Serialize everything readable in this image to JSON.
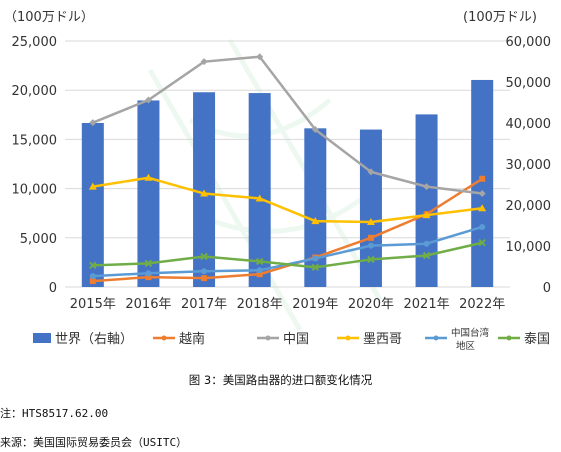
{
  "chart_data": {
    "type": "bar+line",
    "left_unit": "（100万ドル）",
    "right_unit": "(100万ドル)",
    "left_ticks": [
      "0",
      "5,000",
      "10,000",
      "15,000",
      "20,000",
      "25,000"
    ],
    "right_ticks": [
      "0",
      "10,000",
      "20,000",
      "30,000",
      "40,000",
      "50,000",
      "60,000"
    ],
    "left_ylim": [
      0,
      25000
    ],
    "right_ylim": [
      0,
      60000
    ],
    "categories": [
      "2015年",
      "2016年",
      "2017年",
      "2018年",
      "2019年",
      "2020年",
      "2021年",
      "2022年"
    ],
    "bar_series": {
      "name": "世界（右軸）",
      "color": "#4472C4",
      "axis": "right",
      "values": [
        40000,
        45500,
        47500,
        47300,
        38700,
        38400,
        42100,
        50500
      ]
    },
    "series": [
      {
        "name": "越南",
        "color": "#ED7D31",
        "axis": "left",
        "values": [
          600,
          1000,
          900,
          1300,
          3000,
          5000,
          7400,
          11000
        ]
      },
      {
        "name": "中国",
        "color": "#A5A5A5",
        "axis": "left",
        "values": [
          16700,
          19000,
          22900,
          23400,
          16000,
          11700,
          10200,
          9500
        ]
      },
      {
        "name": "墨西哥",
        "color": "#FFC000",
        "axis": "left",
        "values": [
          10200,
          11100,
          9500,
          9000,
          6700,
          6600,
          7300,
          8000
        ]
      },
      {
        "name": "中国台湾地区",
        "color": "#5B9BD5",
        "axis": "left",
        "values": [
          1100,
          1400,
          1600,
          1700,
          2900,
          4200,
          4400,
          6100
        ]
      },
      {
        "name": "泰国",
        "color": "#70AD47",
        "axis": "left",
        "values": [
          2200,
          2400,
          3100,
          2600,
          2000,
          2800,
          3200,
          4500
        ]
      }
    ],
    "grid": true,
    "legend_position": "bottom"
  },
  "caption": "图 3：美国路由器的进口额变化情况",
  "note": "注：HTS8517.62.00",
  "source": "来源：美国国际贸易委员会（USITC）"
}
